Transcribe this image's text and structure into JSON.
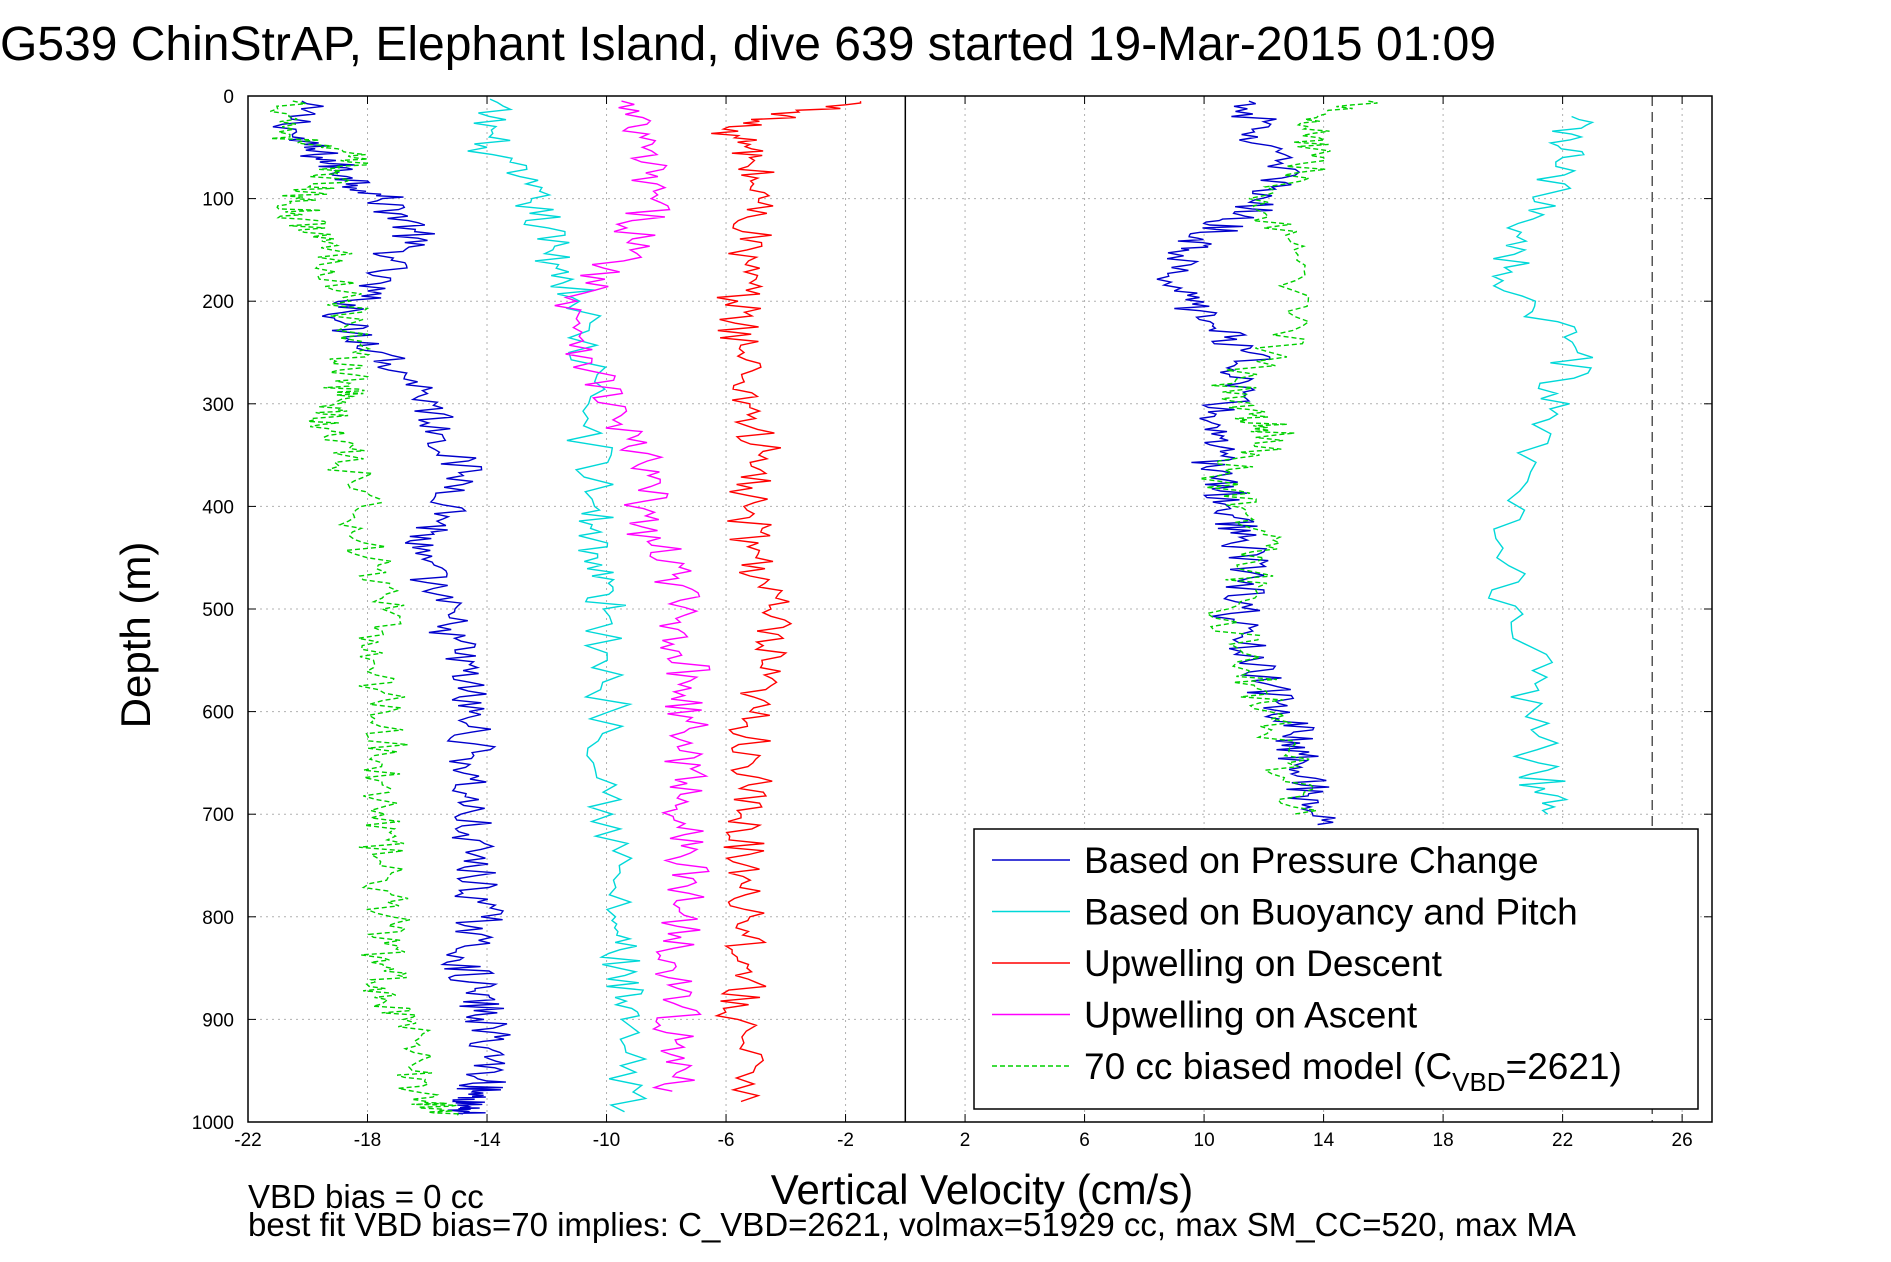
{
  "chart_data": {
    "type": "line",
    "title": "G539 ChinStrAP, Elephant Island, dive 639 started 19-Mar-2015 01:09",
    "xlabel": "Vertical Velocity (cm/s)",
    "ylabel": "Depth (m)",
    "xlim": [
      -22,
      27
    ],
    "ylim": [
      1000,
      0
    ],
    "x_ticks": [
      -22,
      -18,
      -14,
      -10,
      -6,
      -2,
      2,
      6,
      10,
      14,
      18,
      22,
      26
    ],
    "y_ticks": [
      0,
      100,
      200,
      300,
      400,
      500,
      600,
      700,
      800,
      900,
      1000
    ],
    "grid": true,
    "legend_position": "bottom-right",
    "reference_line_solid_x": 0,
    "reference_line_dashed_x": 25,
    "series": [
      {
        "name": "Based on Pressure Change",
        "color": "#0000cc",
        "dash": "solid",
        "segments": [
          {
            "x": [
              -20.2,
              -20.5,
              -19.5,
              -18.5,
              -17.5,
              -16.4,
              -17.2,
              -18.2,
              -18.9,
              -17.5,
              -16.0,
              -15.5,
              -14.8,
              -15.3,
              -16.5,
              -15.8,
              -15.2,
              -14.8,
              -14.6,
              -14.5,
              -14.7,
              -14.6,
              -14.4,
              -14.2,
              -14.8,
              -14.4,
              -14.1,
              -13.8,
              -14.0,
              -14.5,
              -14.6,
              -14.8
            ],
            "y": [
              5,
              40,
              60,
              80,
              100,
              130,
              160,
              195,
              220,
              250,
              290,
              330,
              370,
              410,
              440,
              480,
              520,
              560,
              600,
              640,
              680,
              720,
              760,
              800,
              840,
              870,
              900,
              930,
              960,
              975,
              985,
              992
            ]
          },
          {
            "x": [
              11.5,
              11.8,
              12.6,
              11.6,
              10.4,
              9.5,
              9.0,
              10.2,
              11.5,
              11.2,
              10.4,
              10.2,
              10.5,
              10.8,
              11.2,
              11.5,
              11.0,
              11.5,
              12.4,
              13.0,
              13.3,
              13.5,
              13.8
            ],
            "y": [
              5,
              40,
              80,
              110,
              130,
              150,
              190,
              220,
              250,
              280,
              310,
              340,
              370,
              400,
              430,
              470,
              510,
              550,
              590,
              620,
              650,
              680,
              710
            ]
          }
        ]
      },
      {
        "name": "Based on Buoyancy and Pitch",
        "color": "#00d8d8",
        "dash": "solid",
        "segments": [
          {
            "x": [
              -13.9,
              -14.0,
              -12.5,
              -11.8,
              -10.9,
              -10.6,
              -10.4,
              -10.3,
              -10.1,
              -9.9,
              -9.8,
              -9.7,
              -9.6,
              -9.5,
              -9.4
            ],
            "y": [
              3,
              50,
              100,
              150,
              200,
              300,
              400,
              450,
              500,
              600,
              700,
              800,
              850,
              900,
              990
            ]
          },
          {
            "x": [
              22.3,
              22.0,
              21.0,
              20.0,
              22.5,
              21.0,
              19.8,
              21.0,
              21.2,
              21.5
            ],
            "y": [
              20,
              60,
              120,
              180,
              250,
              320,
              450,
              560,
              650,
              700
            ]
          }
        ]
      },
      {
        "name": "Upwelling on Descent",
        "color": "#ff0000",
        "dash": "solid",
        "segments": [
          {
            "x": [
              -1.5,
              -5.9,
              -5.2,
              -4.9,
              -5.3,
              -5.6,
              -5.4,
              -5.2,
              -4.9,
              -5.4,
              -5.0,
              -4.5,
              -4.8,
              -5.2,
              -5.1,
              -5.5,
              -5.3,
              -5.2,
              -5.3,
              -5.6,
              -5.5
            ],
            "y": [
              5,
              30,
              60,
              100,
              150,
              200,
              250,
              300,
              350,
              400,
              450,
              500,
              550,
              600,
              650,
              700,
              750,
              800,
              850,
              900,
              980
            ]
          }
        ]
      },
      {
        "name": "Upwelling on Ascent",
        "color": "#ff00ff",
        "dash": "solid",
        "segments": [
          {
            "x": [
              -9.5,
              -8.8,
              -8.5,
              -9.2,
              -11.0,
              -10.5,
              -9.5,
              -8.6,
              -8.8,
              -7.6,
              -7.6,
              -7.2,
              -7.4,
              -7.3,
              -7.4,
              -7.3,
              -7.5,
              -7.6,
              -7.7,
              -7.8
            ],
            "y": [
              5,
              50,
              100,
              150,
              200,
              260,
              320,
              370,
              420,
              470,
              520,
              570,
              620,
              670,
              720,
              770,
              820,
              870,
              920,
              970
            ]
          }
        ]
      },
      {
        "name": "70 cc biased model (C_VBD=2621)",
        "legend_main": "70 cc biased model (C",
        "legend_sub": "VBD",
        "legend_tail": "=2621)",
        "color": "#00d000",
        "dash": "dashed",
        "segments": [
          {
            "x": [
              -20.5,
              -20.6,
              -18.5,
              -19.2,
              -20.4,
              -20.2,
              -19.2,
              -18.6,
              -18.5,
              -18.6,
              -19.0,
              -19.5,
              -18.8,
              -18.2,
              -18.0,
              -17.5,
              -17.8,
              -17.3,
              -17.5,
              -17.4,
              -17.6,
              -17.2,
              -17.5,
              -17.4,
              -16.8,
              -16.5,
              -16.0,
              -15.0
            ],
            "y": [
              5,
              40,
              60,
              80,
              100,
              120,
              150,
              200,
              250,
              280,
              300,
              320,
              350,
              400,
              450,
              500,
              550,
              600,
              650,
              700,
              750,
              800,
              840,
              870,
              900,
              950,
              980,
              993
            ]
          },
          {
            "x": [
              15.5,
              13.5,
              14.0,
              11.5,
              13.0,
              13.5,
              11.0,
              11.5,
              12.5,
              10.5,
              11.5,
              12.0,
              10.8,
              11.5,
              12.2,
              12.8,
              13.0
            ],
            "y": [
              5,
              30,
              60,
              100,
              150,
              220,
              280,
              310,
              330,
              370,
              410,
              450,
              500,
              560,
              600,
              650,
              700
            ]
          }
        ]
      }
    ],
    "annotations": [
      "VBD bias = 0 cc",
      "best fit VBD bias=70 implies: C_VBD=2621, volmax=51929 cc, max SM_CC=520, max MA"
    ]
  }
}
